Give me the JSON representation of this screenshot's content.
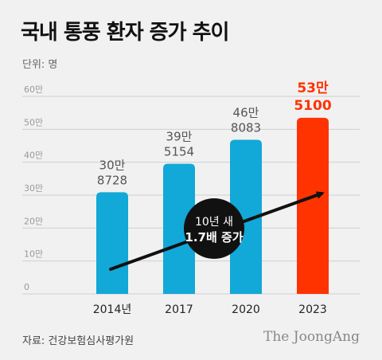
{
  "title": "국내 통풍 환자 증가 추이",
  "unit_label": "단위: 명",
  "source": "자료: 건강보험심사평가원",
  "brand": "The JoongAng",
  "badge": {
    "line1": "10년 새",
    "line2": "1.7배 증가"
  },
  "colors": {
    "bar": "#12a8d8",
    "highlight": "#ff3300",
    "grid": "#d0d0d0",
    "arrow": "#111111"
  },
  "chart_data": {
    "type": "bar",
    "categories": [
      "2014년",
      "2017",
      "2020",
      "2023"
    ],
    "values": [
      308728,
      395154,
      468083,
      535100
    ],
    "value_labels": [
      [
        "30만",
        "8728"
      ],
      [
        "39만",
        "5154"
      ],
      [
        "46만",
        "8083"
      ],
      [
        "53만",
        "5100"
      ]
    ],
    "highlight_index": 3,
    "ylim": [
      0,
      600000
    ],
    "yticks": [
      0,
      100000,
      200000,
      300000,
      400000,
      500000,
      600000
    ],
    "ytick_labels": [
      "0",
      "10만",
      "20만",
      "30만",
      "40만",
      "50만",
      "60만"
    ],
    "grid": true,
    "trend_arrow": true
  }
}
